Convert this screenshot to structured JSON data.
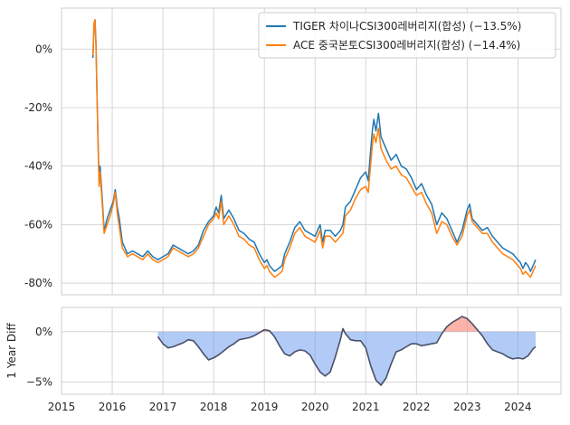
{
  "chart_data": [
    {
      "type": "line",
      "title": "",
      "xlabel": "",
      "ylabel": "",
      "xlim": [
        2015.0,
        2024.85
      ],
      "ylim": [
        -84,
        14
      ],
      "yticks": [
        0,
        -20,
        -40,
        -60,
        -80
      ],
      "ytick_labels": [
        "0%",
        "-20%",
        "-40%",
        "-60%",
        "-80%"
      ],
      "grid": true,
      "legend": "top-right",
      "series": [
        {
          "name": "TIGER 차이나CSI300레버리지(합성) (−13.5%)",
          "color": "#1f77b4",
          "x": [
            2015.62,
            2015.64,
            2015.66,
            2015.68,
            2015.7,
            2015.72,
            2015.74,
            2015.76,
            2015.8,
            2015.84,
            2015.9,
            2015.96,
            2016.02,
            2016.06,
            2016.1,
            2016.14,
            2016.2,
            2016.3,
            2016.4,
            2016.5,
            2016.6,
            2016.7,
            2016.8,
            2016.9,
            2017.0,
            2017.1,
            2017.2,
            2017.3,
            2017.4,
            2017.5,
            2017.6,
            2017.7,
            2017.8,
            2017.9,
            2018.0,
            2018.05,
            2018.1,
            2018.15,
            2018.2,
            2018.3,
            2018.4,
            2018.5,
            2018.6,
            2018.7,
            2018.8,
            2018.9,
            2019.0,
            2019.05,
            2019.1,
            2019.15,
            2019.2,
            2019.28,
            2019.35,
            2019.4,
            2019.5,
            2019.6,
            2019.7,
            2019.8,
            2019.9,
            2020.0,
            2020.05,
            2020.1,
            2020.15,
            2020.2,
            2020.3,
            2020.4,
            2020.5,
            2020.55,
            2020.6,
            2020.7,
            2020.8,
            2020.9,
            2021.0,
            2021.05,
            2021.1,
            2021.13,
            2021.16,
            2021.2,
            2021.25,
            2021.3,
            2021.4,
            2021.5,
            2021.6,
            2021.7,
            2021.8,
            2021.9,
            2022.0,
            2022.1,
            2022.2,
            2022.3,
            2022.4,
            2022.5,
            2022.6,
            2022.7,
            2022.8,
            2022.9,
            2023.0,
            2023.05,
            2023.1,
            2023.2,
            2023.3,
            2023.4,
            2023.5,
            2023.6,
            2023.7,
            2023.8,
            2023.9,
            2024.0,
            2024.05,
            2024.1,
            2024.15,
            2024.2,
            2024.25,
            2024.3,
            2024.35
          ],
          "y": [
            -3,
            8,
            10,
            2,
            -15,
            -30,
            -45,
            -40,
            -50,
            -62,
            -58,
            -55,
            -52,
            -48,
            -54,
            -58,
            -66,
            -70,
            -69,
            -70,
            -71,
            -69,
            -71,
            -72,
            -71,
            -70,
            -67,
            -68,
            -69,
            -70,
            -69,
            -67,
            -62,
            -59,
            -57,
            -54,
            -56,
            -50,
            -58,
            -55,
            -58,
            -62,
            -63,
            -65,
            -66,
            -70,
            -73,
            -72,
            -74,
            -75,
            -76,
            -75,
            -74,
            -70,
            -66,
            -61,
            -59,
            -62,
            -63,
            -64,
            -62,
            -60,
            -66,
            -62,
            -62,
            -64,
            -62,
            -60,
            -54,
            -52,
            -48,
            -44,
            -42,
            -45,
            -34,
            -28,
            -24,
            -28,
            -22,
            -30,
            -34,
            -38,
            -36,
            -40,
            -41,
            -44,
            -48,
            -46,
            -50,
            -53,
            -60,
            -56,
            -58,
            -62,
            -66,
            -62,
            -55,
            -53,
            -58,
            -60,
            -62,
            -61,
            -64,
            -66,
            -68,
            -69,
            -70,
            -72,
            -73,
            -75,
            -73,
            -74,
            -76,
            -74,
            -72
          ]
        },
        {
          "name": "ACE 중국본토CSI300레버리지(합성) (−14.4%)",
          "color": "#ff7f0e",
          "x": [
            2015.62,
            2015.64,
            2015.66,
            2015.68,
            2015.7,
            2015.72,
            2015.74,
            2015.76,
            2015.8,
            2015.84,
            2015.9,
            2015.96,
            2016.02,
            2016.06,
            2016.1,
            2016.14,
            2016.2,
            2016.3,
            2016.4,
            2016.5,
            2016.6,
            2016.7,
            2016.8,
            2016.9,
            2017.0,
            2017.1,
            2017.2,
            2017.3,
            2017.4,
            2017.5,
            2017.6,
            2017.7,
            2017.8,
            2017.9,
            2018.0,
            2018.05,
            2018.1,
            2018.15,
            2018.2,
            2018.3,
            2018.4,
            2018.5,
            2018.6,
            2018.7,
            2018.8,
            2018.9,
            2019.0,
            2019.05,
            2019.1,
            2019.15,
            2019.2,
            2019.28,
            2019.35,
            2019.4,
            2019.5,
            2019.6,
            2019.7,
            2019.8,
            2019.9,
            2020.0,
            2020.05,
            2020.1,
            2020.15,
            2020.2,
            2020.3,
            2020.4,
            2020.5,
            2020.55,
            2020.6,
            2020.7,
            2020.8,
            2020.9,
            2021.0,
            2021.05,
            2021.1,
            2021.13,
            2021.16,
            2021.2,
            2021.25,
            2021.3,
            2021.4,
            2021.5,
            2021.6,
            2021.7,
            2021.8,
            2021.9,
            2022.0,
            2022.1,
            2022.2,
            2022.3,
            2022.4,
            2022.5,
            2022.6,
            2022.7,
            2022.8,
            2022.9,
            2023.0,
            2023.05,
            2023.1,
            2023.2,
            2023.3,
            2023.4,
            2023.5,
            2023.6,
            2023.7,
            2023.8,
            2023.9,
            2024.0,
            2024.05,
            2024.1,
            2024.15,
            2024.2,
            2024.25,
            2024.3,
            2024.35
          ],
          "y": [
            -2,
            9,
            10,
            1,
            -16,
            -32,
            -47,
            -42,
            -52,
            -63,
            -60,
            -57,
            -53,
            -49,
            -56,
            -61,
            -68,
            -71,
            -70,
            -71,
            -72,
            -70,
            -72,
            -73,
            -72,
            -71,
            -68,
            -69,
            -70,
            -71,
            -70,
            -68,
            -64,
            -60,
            -58,
            -56,
            -58,
            -52,
            -60,
            -57,
            -60,
            -64,
            -65,
            -67,
            -68,
            -72,
            -75,
            -74,
            -76,
            -77,
            -78,
            -77,
            -76,
            -72,
            -68,
            -63,
            -61,
            -64,
            -65,
            -66,
            -64,
            -62,
            -68,
            -64,
            -64,
            -66,
            -64,
            -63,
            -57,
            -55,
            -51,
            -48,
            -47,
            -49,
            -39,
            -33,
            -29,
            -32,
            -27,
            -34,
            -38,
            -41,
            -40,
            -43,
            -44,
            -47,
            -50,
            -49,
            -53,
            -56,
            -63,
            -59,
            -60,
            -64,
            -67,
            -64,
            -57,
            -55,
            -59,
            -61,
            -63,
            -63,
            -66,
            -68,
            -70,
            -71,
            -72,
            -74,
            -75,
            -77,
            -76,
            -77,
            -78,
            -76,
            -74
          ]
        }
      ]
    },
    {
      "type": "area",
      "title": "",
      "xlabel": "",
      "ylabel": "1 Year Diff",
      "xlim": [
        2015.0,
        2024.85
      ],
      "ylim": [
        -6.2,
        2.4
      ],
      "yticks": [
        0,
        -5
      ],
      "ytick_labels": [
        "0%",
        "−5%"
      ],
      "xticks": [
        2015,
        2016,
        2017,
        2018,
        2019,
        2020,
        2021,
        2022,
        2023,
        2024
      ],
      "xtick_labels": [
        "2015",
        "2016",
        "2017",
        "2018",
        "2019",
        "2020",
        "2021",
        "2022",
        "2023",
        "2024"
      ],
      "grid": true,
      "positive_color": "#fa8072",
      "negative_color": "#6495ed",
      "line_color": "#4a5068",
      "x": [
        2016.9,
        2017.0,
        2017.1,
        2017.2,
        2017.3,
        2017.4,
        2017.5,
        2017.6,
        2017.7,
        2017.8,
        2017.9,
        2018.0,
        2018.1,
        2018.2,
        2018.3,
        2018.4,
        2018.5,
        2018.6,
        2018.7,
        2018.8,
        2018.9,
        2019.0,
        2019.1,
        2019.2,
        2019.3,
        2019.4,
        2019.5,
        2019.6,
        2019.7,
        2019.8,
        2019.9,
        2020.0,
        2020.1,
        2020.2,
        2020.3,
        2020.4,
        2020.5,
        2020.55,
        2020.6,
        2020.7,
        2020.8,
        2020.9,
        2021.0,
        2021.1,
        2021.2,
        2021.3,
        2021.4,
        2021.5,
        2021.6,
        2021.7,
        2021.8,
        2021.9,
        2022.0,
        2022.1,
        2022.2,
        2022.3,
        2022.4,
        2022.5,
        2022.6,
        2022.7,
        2022.8,
        2022.9,
        2023.0,
        2023.1,
        2023.2,
        2023.3,
        2023.4,
        2023.5,
        2023.6,
        2023.7,
        2023.8,
        2023.9,
        2024.0,
        2024.1,
        2024.2,
        2024.3,
        2024.35
      ],
      "y": [
        -0.5,
        -1.2,
        -1.6,
        -1.5,
        -1.3,
        -1.1,
        -0.8,
        -0.9,
        -1.5,
        -2.2,
        -2.8,
        -2.6,
        -2.3,
        -1.9,
        -1.5,
        -1.2,
        -0.8,
        -0.7,
        -0.6,
        -0.4,
        -0.1,
        0.2,
        0.1,
        -0.5,
        -1.4,
        -2.2,
        -2.4,
        -2.0,
        -1.8,
        -1.9,
        -2.3,
        -3.2,
        -4.0,
        -4.4,
        -4.0,
        -2.5,
        -0.8,
        0.3,
        -0.2,
        -0.8,
        -0.9,
        -0.9,
        -1.6,
        -3.4,
        -4.8,
        -5.3,
        -4.6,
        -3.2,
        -2.0,
        -1.8,
        -1.5,
        -1.2,
        -1.2,
        -1.4,
        -1.3,
        -1.2,
        -1.1,
        -0.2,
        0.5,
        0.9,
        1.2,
        1.5,
        1.3,
        0.8,
        0.2,
        -0.4,
        -1.2,
        -1.8,
        -2.0,
        -2.2,
        -2.5,
        -2.7,
        -2.6,
        -2.7,
        -2.4,
        -1.7,
        -1.5
      ]
    }
  ]
}
